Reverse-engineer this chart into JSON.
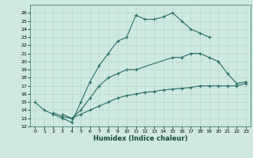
{
  "xlabel": "Humidex (Indice chaleur)",
  "bg_color": "#cfe8e0",
  "line_color": "#2a7068",
  "grid_color": "#b8d8d0",
  "xlim": [
    -0.5,
    23.5
  ],
  "ylim": [
    12,
    27
  ],
  "xticks": [
    0,
    1,
    2,
    3,
    4,
    5,
    6,
    7,
    8,
    9,
    10,
    11,
    12,
    13,
    14,
    15,
    16,
    17,
    18,
    19,
    20,
    21,
    22,
    23
  ],
  "yticks": [
    12,
    13,
    14,
    15,
    16,
    17,
    18,
    19,
    20,
    21,
    22,
    23,
    24,
    25,
    26
  ],
  "line1_x": [
    0,
    1,
    2,
    3,
    4,
    5,
    6,
    7,
    8,
    9,
    10,
    11,
    12,
    13,
    14,
    15,
    16,
    17,
    18,
    19
  ],
  "line1_y": [
    15,
    14,
    13.5,
    13,
    12.5,
    15,
    17.5,
    19.5,
    21,
    22.5,
    23,
    25.7,
    25.2,
    25.2,
    25.5,
    26,
    25,
    24,
    23.5,
    23
  ],
  "line2_x": [
    2,
    3,
    4,
    5,
    6,
    7,
    8,
    9,
    10,
    11,
    15,
    16,
    17,
    18,
    19,
    20,
    21,
    22,
    23
  ],
  "line2_y": [
    13.7,
    13.2,
    13,
    14,
    15.5,
    17,
    18,
    18.5,
    19,
    19,
    20.5,
    20.5,
    21,
    21,
    20.5,
    20,
    18.5,
    17.3,
    17.5
  ],
  "line3_x": [
    3,
    4,
    5,
    6,
    7,
    8,
    9,
    10,
    11,
    12,
    13,
    14,
    15,
    16,
    17,
    18,
    19,
    20,
    21,
    22,
    23
  ],
  "line3_y": [
    13.5,
    13,
    13.5,
    14,
    14.5,
    15,
    15.5,
    15.8,
    16,
    16.2,
    16.3,
    16.5,
    16.6,
    16.7,
    16.8,
    17,
    17,
    17,
    17,
    17,
    17.3
  ]
}
